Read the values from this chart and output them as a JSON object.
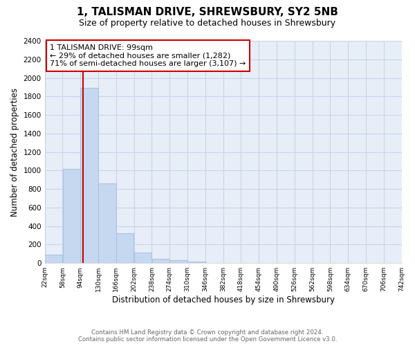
{
  "title": "1, TALISMAN DRIVE, SHREWSBURY, SY2 5NB",
  "subtitle": "Size of property relative to detached houses in Shrewsbury",
  "xlabel": "Distribution of detached houses by size in Shrewsbury",
  "ylabel": "Number of detached properties",
  "bar_edges": [
    22,
    58,
    94,
    130,
    166,
    202,
    238,
    274,
    310,
    346,
    382,
    418,
    454,
    490,
    526,
    562,
    598,
    634,
    670,
    706,
    742
  ],
  "bar_heights": [
    90,
    1020,
    1890,
    860,
    320,
    115,
    50,
    35,
    20,
    0,
    0,
    0,
    0,
    0,
    0,
    0,
    0,
    0,
    0,
    0
  ],
  "bar_color": "#c5d8f0",
  "bar_edge_color": "#a8c4e0",
  "plot_bg_color": "#e8eef8",
  "red_line_x": 99,
  "annotation_title": "1 TALISMAN DRIVE: 99sqm",
  "annotation_line1": "← 29% of detached houses are smaller (1,282)",
  "annotation_line2": "71% of semi-detached houses are larger (3,107) →",
  "annotation_box_color": "#ffffff",
  "annotation_box_edge": "#cc0000",
  "red_line_color": "#cc0000",
  "ylim": [
    0,
    2400
  ],
  "yticks": [
    0,
    200,
    400,
    600,
    800,
    1000,
    1200,
    1400,
    1600,
    1800,
    2000,
    2200,
    2400
  ],
  "tick_labels": [
    "22sqm",
    "58sqm",
    "94sqm",
    "130sqm",
    "166sqm",
    "202sqm",
    "238sqm",
    "274sqm",
    "310sqm",
    "346sqm",
    "382sqm",
    "418sqm",
    "454sqm",
    "490sqm",
    "526sqm",
    "562sqm",
    "598sqm",
    "634sqm",
    "670sqm",
    "706sqm",
    "742sqm"
  ],
  "footer_line1": "Contains HM Land Registry data © Crown copyright and database right 2024.",
  "footer_line2": "Contains public sector information licensed under the Open Government Licence v3.0.",
  "background_color": "#ffffff",
  "grid_color": "#c8d4e8"
}
